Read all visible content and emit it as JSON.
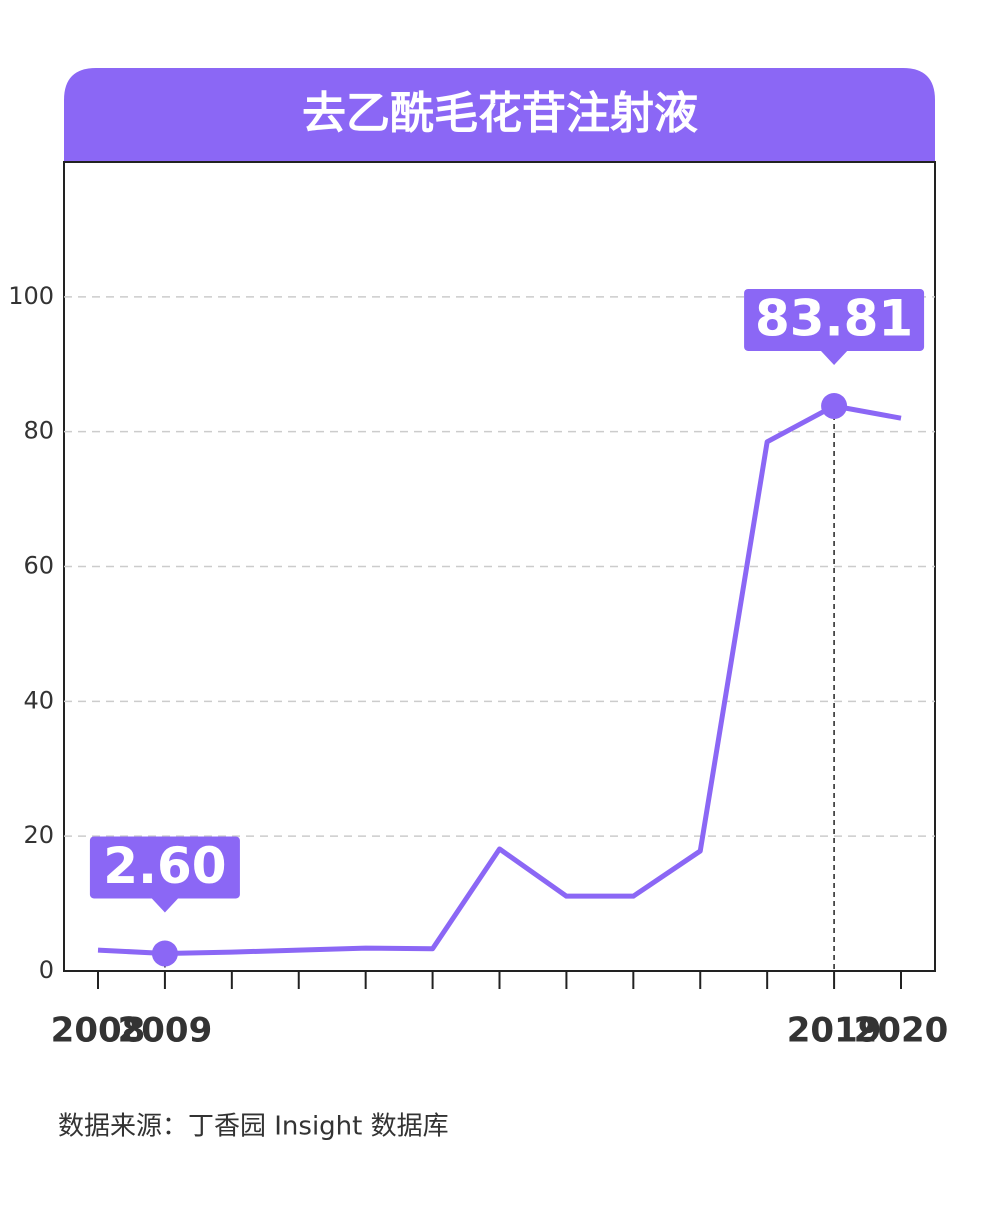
{
  "chart_data": {
    "type": "line",
    "title": "去乙酰毛花苷注射液",
    "source": "数据来源：丁香园 Insight 数据库",
    "categories": [
      "2008",
      "2009",
      null,
      null,
      null,
      null,
      null,
      null,
      null,
      null,
      null,
      "2019",
      "2020"
    ],
    "series": [
      {
        "name": "去乙酰毛花苷注射液",
        "color": "#8b67f5",
        "values": [
          3.1,
          2.6,
          2.8,
          3.1,
          3.4,
          3.3,
          18.1,
          11.1,
          11.1,
          17.8,
          78.5,
          83.81,
          82.0
        ],
        "value_labels": [
          null,
          "2.60",
          null,
          null,
          null,
          null,
          null,
          null,
          null,
          null,
          null,
          "83.81",
          null
        ]
      }
    ],
    "ylim": [
      0,
      120
    ],
    "yticks": [
      0,
      20,
      40,
      60,
      80,
      100
    ],
    "grid": true
  }
}
